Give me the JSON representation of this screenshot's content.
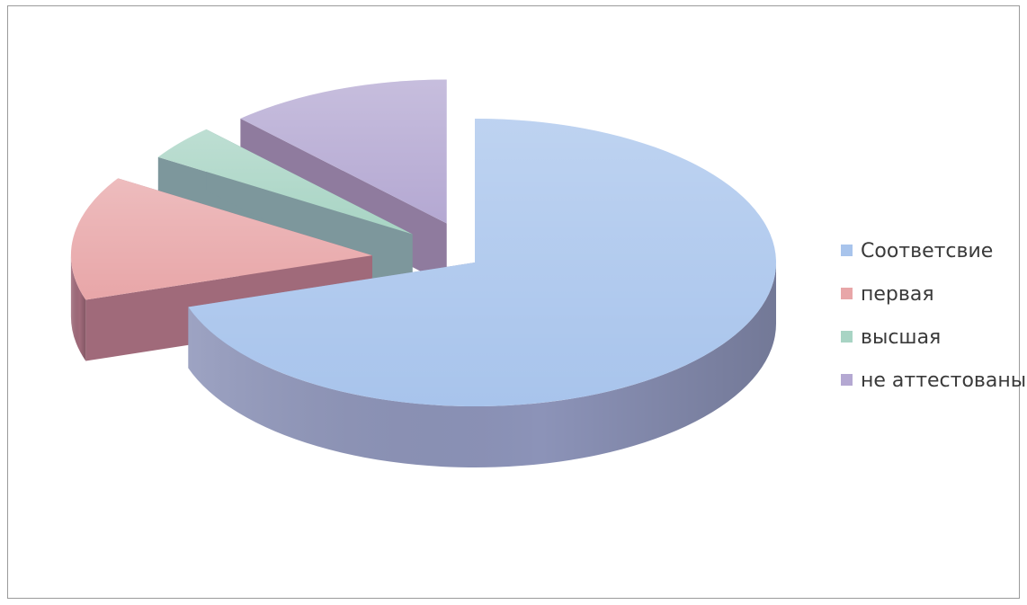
{
  "chart_data": {
    "type": "pie",
    "style": "3d-exploded",
    "title": "",
    "categories": [
      "Соответсвие",
      "первая",
      "высшая",
      "не аттестованы"
    ],
    "values": [
      70,
      14,
      4,
      12
    ],
    "colors": [
      "#a8c4ec",
      "#e8a6a8",
      "#a8d4c4",
      "#b4a8d2"
    ],
    "side_colors": [
      "#8c93b8",
      "#a06a7a",
      "#7d979c",
      "#8f7b9e"
    ],
    "legend_position": "right"
  }
}
